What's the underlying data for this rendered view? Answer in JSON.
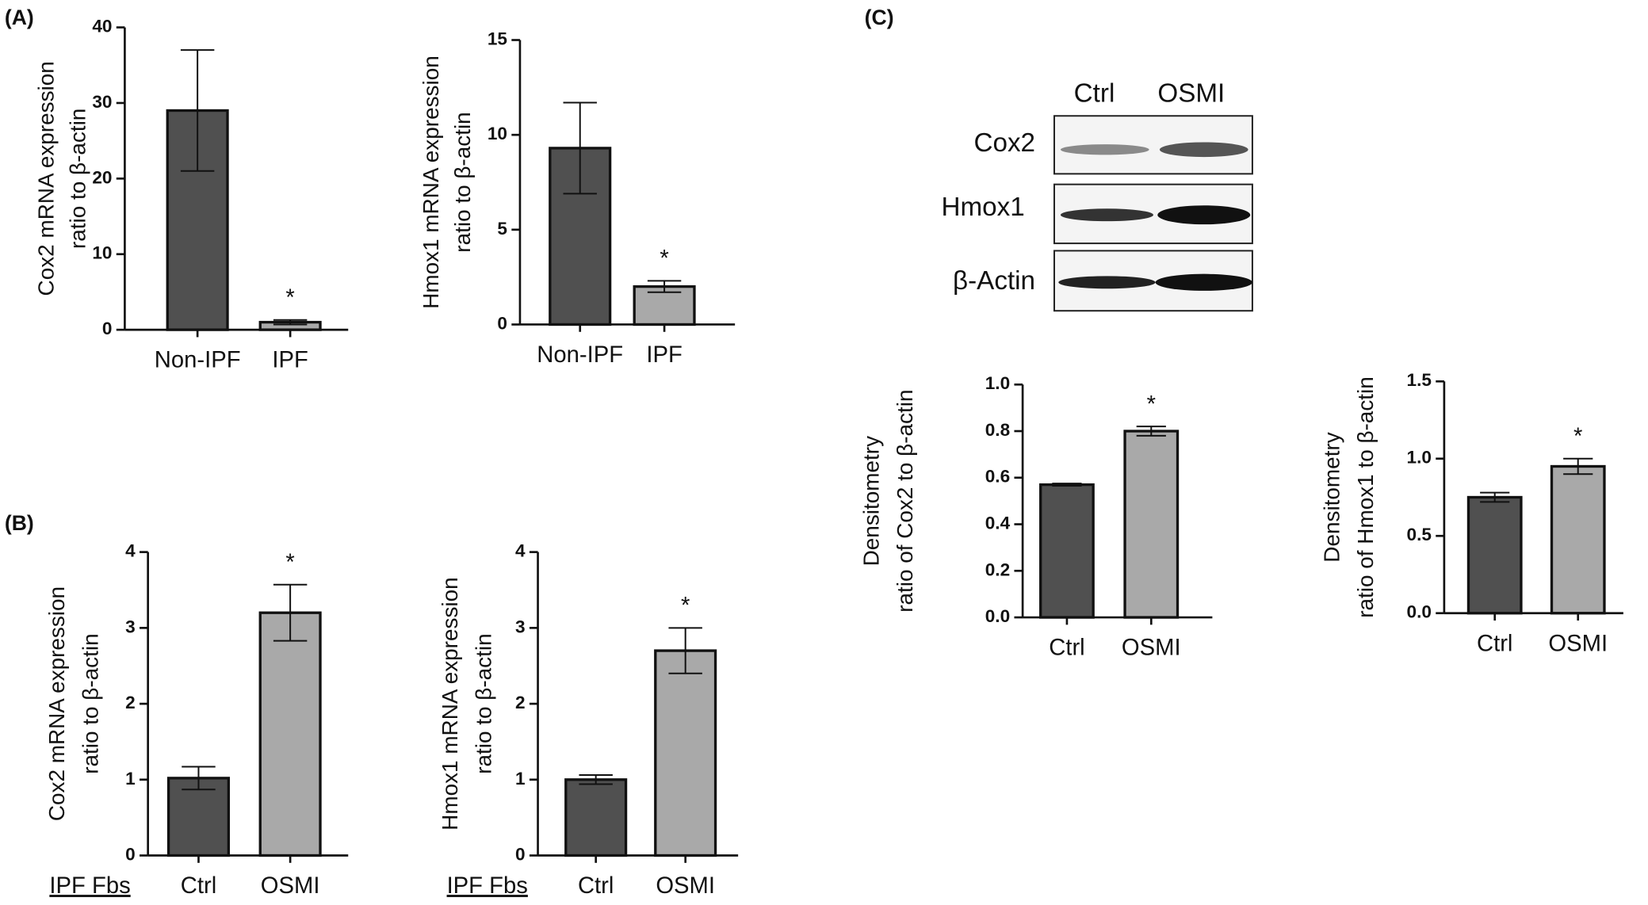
{
  "panels": [
    "(A)",
    "(B)",
    "(C)"
  ],
  "blot": {
    "lanes": [
      "Ctrl",
      "OSMI"
    ],
    "bands": [
      "Cox2",
      "Hmox1",
      "β-Actin"
    ]
  },
  "chart_data": [
    {
      "type": "bar",
      "ylabel": [
        "Cox2 mRNA expression",
        "ratio to β-actin"
      ],
      "categories": [
        "Non-IPF",
        "IPF"
      ],
      "values": [
        29,
        1.0
      ],
      "errors": [
        8,
        0.3
      ],
      "colors": [
        "#505050",
        "#a9a9a9"
      ],
      "significance": [
        null,
        "*"
      ],
      "ylim": [
        0,
        40
      ],
      "yticks": [
        0,
        10,
        20,
        30,
        40
      ]
    },
    {
      "type": "bar",
      "ylabel": [
        "Hmox1 mRNA expression",
        "ratio to β-actin"
      ],
      "categories": [
        "Non-IPF",
        "IPF"
      ],
      "values": [
        9.3,
        2.0
      ],
      "errors": [
        2.4,
        0.3
      ],
      "colors": [
        "#505050",
        "#a9a9a9"
      ],
      "significance": [
        null,
        "*"
      ],
      "ylim": [
        0,
        15
      ],
      "yticks": [
        0,
        5,
        10,
        15
      ]
    },
    {
      "type": "bar",
      "ylabel": [
        "Cox2 mRNA expression",
        "ratio to β-actin"
      ],
      "group_label": "IPF Fbs",
      "categories": [
        "Ctrl",
        "OSMI"
      ],
      "values": [
        1.02,
        3.2
      ],
      "errors": [
        0.15,
        0.37
      ],
      "colors": [
        "#505050",
        "#a9a9a9"
      ],
      "significance": [
        null,
        "*"
      ],
      "ylim": [
        0,
        4
      ],
      "yticks": [
        0,
        1,
        2,
        3,
        4
      ]
    },
    {
      "type": "bar",
      "ylabel": [
        "Hmox1 mRNA expression",
        "ratio to β-actin"
      ],
      "group_label": "IPF Fbs",
      "categories": [
        "Ctrl",
        "OSMI"
      ],
      "values": [
        1.0,
        2.7
      ],
      "errors": [
        0.06,
        0.3
      ],
      "colors": [
        "#505050",
        "#a9a9a9"
      ],
      "significance": [
        null,
        "*"
      ],
      "ylim": [
        0,
        4
      ],
      "yticks": [
        0,
        1,
        2,
        3,
        4
      ]
    },
    {
      "type": "bar",
      "ylabel": [
        "Densitometry",
        "ratio of Cox2 to β-actin"
      ],
      "categories": [
        "Ctrl",
        "OSMI"
      ],
      "values": [
        0.57,
        0.8
      ],
      "errors": [
        0.005,
        0.02
      ],
      "colors": [
        "#505050",
        "#a9a9a9"
      ],
      "significance": [
        null,
        "*"
      ],
      "ylim": [
        0,
        1.0
      ],
      "yticks": [
        {
          "value": 0,
          "label": "0.0"
        },
        0.2,
        0.4,
        0.6,
        0.8,
        {
          "value": 1.0,
          "label": "1.0"
        }
      ]
    },
    {
      "type": "bar",
      "ylabel": [
        "Densitometry",
        "ratio of Hmox1 to β-actin"
      ],
      "categories": [
        "Ctrl",
        "OSMI"
      ],
      "values": [
        0.75,
        0.95
      ],
      "errors": [
        0.03,
        0.05
      ],
      "colors": [
        "#505050",
        "#a9a9a9"
      ],
      "significance": [
        null,
        "*"
      ],
      "ylim": [
        0,
        1.5
      ],
      "yticks": [
        {
          "value": 0,
          "label": "0.0"
        },
        0.5,
        {
          "value": 1.0,
          "label": "1.0"
        },
        1.5
      ]
    }
  ]
}
